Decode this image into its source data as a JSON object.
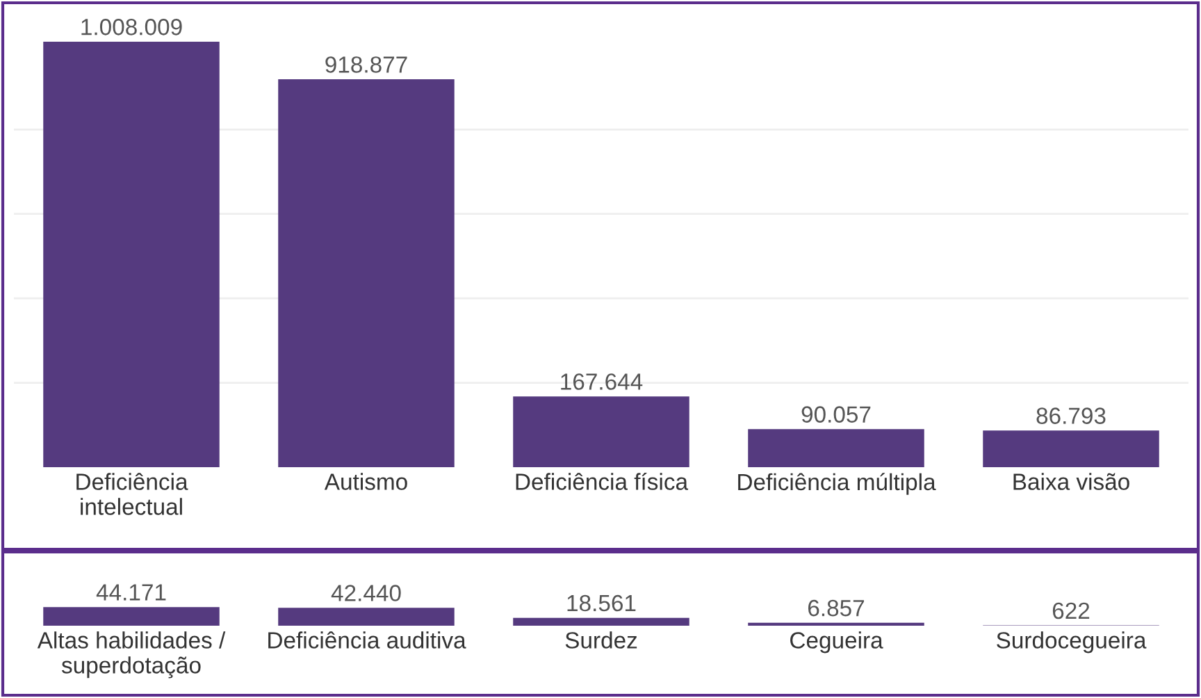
{
  "chart_data": [
    {
      "type": "bar",
      "categories": [
        "Deficiência\nintelectual",
        "Autismo",
        "Deficiência física",
        "Deficiência múltipla",
        "Baixa visão"
      ],
      "values": [
        1008009,
        918877,
        167644,
        90057,
        86793
      ],
      "color": "#553a7f",
      "data_labels": true,
      "value_labels": [
        "1.008.009",
        "918.877",
        "167.644",
        "90.057",
        "86.793"
      ],
      "grid": "y",
      "yticks": [
        {
          "value": 200000,
          "label": null
        },
        {
          "value": 400000,
          "label": null
        },
        {
          "value": 600000,
          "label": null
        },
        {
          "value": 800000,
          "label": null
        }
      ],
      "tick_labels": "x"
    },
    {
      "type": "bar",
      "categories": [
        "Altas habilidades /\nsuperdotação",
        "Deficiência auditiva",
        "Surdez",
        "Cegueira",
        "Surdocegueira"
      ],
      "values": [
        44171,
        42440,
        18561,
        6857,
        622
      ],
      "color": "#553a7f",
      "data_labels": true,
      "value_labels": [
        "44.171",
        "42.440",
        "18.561",
        "6.857",
        "622"
      ],
      "tick_labels": "x"
    }
  ]
}
